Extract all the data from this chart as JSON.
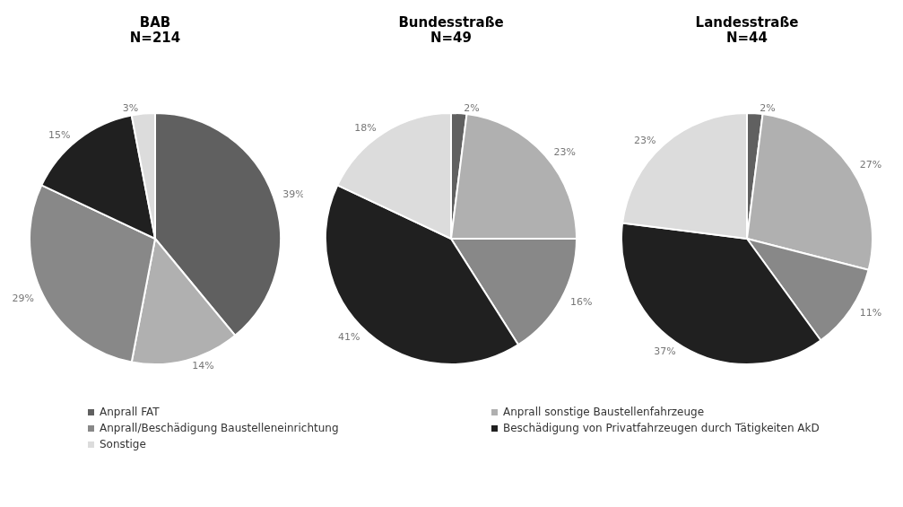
{
  "chart_data": [
    {
      "type": "pie",
      "title": "BAB",
      "subtitle": "N=214",
      "categories": [
        "Anprall FAT",
        "Anprall sonstige Baustellenfahrzeuge",
        "Anprall/Beschädigung Baustelleneinrichtung",
        "Beschädigung von Privatfahrzeugen durch Tätigkeiten AkD",
        "Sonstige"
      ],
      "values": [
        39,
        14,
        29,
        15,
        3
      ],
      "value_labels": [
        "39%",
        "14%",
        "29%",
        "15%",
        "3%"
      ],
      "colors": [
        "#606060",
        "#b0b0b0",
        "#888888",
        "#202020",
        "#dcdcdc"
      ],
      "legend": "bottom"
    },
    {
      "type": "pie",
      "title": "Bundesstraße",
      "subtitle": "N=49",
      "categories": [
        null,
        null,
        null,
        null,
        null
      ],
      "values": [
        2,
        23,
        16,
        41,
        18
      ],
      "value_labels": [
        "2%",
        "23%",
        "16%",
        "41%",
        "18%"
      ],
      "colors": [
        "#606060",
        "#b0b0b0",
        "#888888",
        "#202020",
        "#dcdcdc"
      ]
    },
    {
      "type": "pie",
      "title": "Landesstraße",
      "subtitle": "N=44",
      "categories": [
        null,
        null,
        null,
        null,
        null
      ],
      "values": [
        2,
        27,
        11,
        37,
        23
      ],
      "value_labels": [
        "2%",
        "27%",
        "11%",
        "37%",
        "23%"
      ],
      "colors": [
        "#606060",
        "#b0b0b0",
        "#888888",
        "#202020",
        "#dcdcdc"
      ]
    }
  ]
}
